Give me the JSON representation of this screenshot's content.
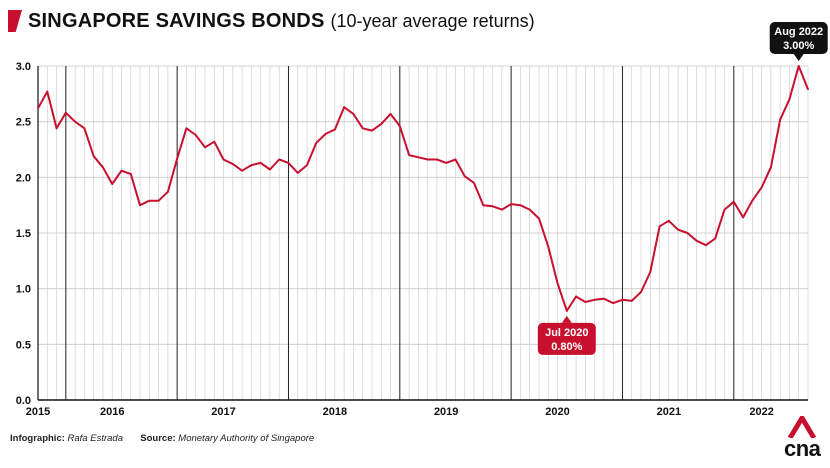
{
  "header": {
    "title": "SINGAPORE SAVINGS BONDS",
    "subtitle": "(10-year average returns)"
  },
  "footer": {
    "infographic_label": "Infographic:",
    "infographic_value": "Rafa Estrada",
    "source_label": "Source:",
    "source_value": "Monetary Authority of Singapore"
  },
  "logo": {
    "text": "cna"
  },
  "colors": {
    "line": "#c8102e",
    "callout": "#c8102e",
    "callout_dark": "#111111",
    "grid": "#c8c8c8",
    "year_line": "#222222"
  },
  "chart_data": {
    "type": "line",
    "title": "SINGAPORE SAVINGS BONDS",
    "subtitle": "(10-year average returns)",
    "xlabel": "",
    "ylabel": "",
    "ylim": [
      0,
      3.0
    ],
    "yticks": [
      "0.0",
      "0.5",
      "1.0",
      "1.5",
      "2.0",
      "2.5",
      "3.0"
    ],
    "x_start": "2015-10",
    "x_end": "2022-09",
    "year_labels": [
      {
        "label": "2015",
        "month": "2015-10"
      },
      {
        "label": "2016",
        "month": "2016-06"
      },
      {
        "label": "2017",
        "month": "2017-06"
      },
      {
        "label": "2018",
        "month": "2018-06"
      },
      {
        "label": "2019",
        "month": "2019-06"
      },
      {
        "label": "2020",
        "month": "2020-06"
      },
      {
        "label": "2021",
        "month": "2021-06"
      },
      {
        "label": "2022",
        "month": "2022-04"
      }
    ],
    "year_boundaries": [
      "2016-01",
      "2017-01",
      "2018-01",
      "2019-01",
      "2020-01",
      "2021-01",
      "2022-01"
    ],
    "grid": true,
    "series": [
      {
        "values": [
          2.62,
          2.77,
          2.44,
          2.58,
          2.5,
          2.44,
          2.19,
          2.09,
          1.94,
          2.06,
          2.03,
          1.75,
          1.79,
          1.79,
          1.87,
          2.17,
          2.44,
          2.38,
          2.27,
          2.32,
          2.16,
          2.12,
          2.06,
          2.11,
          2.13,
          2.07,
          2.16,
          2.13,
          2.04,
          2.11,
          2.31,
          2.39,
          2.43,
          2.63,
          2.57,
          2.44,
          2.42,
          2.48,
          2.57,
          2.46,
          2.2,
          2.18,
          2.16,
          2.16,
          2.13,
          2.16,
          2.01,
          1.95,
          1.75,
          1.74,
          1.71,
          1.76,
          1.75,
          1.71,
          1.63,
          1.38,
          1.05,
          0.8,
          0.93,
          0.88,
          0.9,
          0.91,
          0.87,
          0.9,
          0.89,
          0.97,
          1.15,
          1.56,
          1.61,
          1.53,
          1.5,
          1.43,
          1.39,
          1.45,
          1.71,
          1.78,
          1.64,
          1.79,
          1.91,
          2.09,
          2.52,
          2.7,
          3.0,
          2.79
        ]
      }
    ],
    "callouts": [
      {
        "line1": "Jul 2020",
        "line2": "0.80%",
        "month": "2020-07",
        "value": 0.8,
        "style": "red",
        "position": "below"
      },
      {
        "line1": "Aug 2022",
        "line2": "3.00%",
        "month": "2022-08",
        "value": 3.0,
        "style": "dark",
        "position": "above"
      }
    ]
  }
}
